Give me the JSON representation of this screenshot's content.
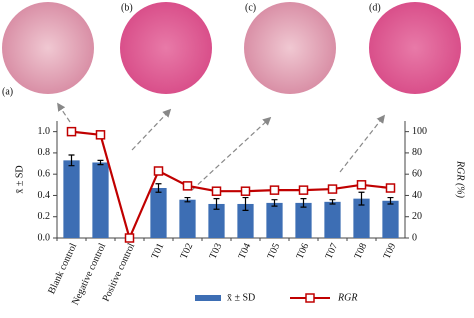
{
  "chart_data": {
    "type": "bar",
    "panel_labels": [
      "(a)",
      "(b)",
      "(c)",
      "(d)"
    ],
    "categories": [
      "Blank control",
      "Negative control",
      "Positive control",
      "T01",
      "T02",
      "T03",
      "T04",
      "T05",
      "T06",
      "T07",
      "T08",
      "T09"
    ],
    "series": [
      {
        "name": "x̄ ± SD",
        "color": "#3d6eb4",
        "values": [
          0.73,
          0.71,
          0.0,
          0.47,
          0.36,
          0.32,
          0.32,
          0.33,
          0.33,
          0.34,
          0.37,
          0.35
        ],
        "errors": [
          0.05,
          0.02,
          0.0,
          0.04,
          0.02,
          0.05,
          0.06,
          0.03,
          0.04,
          0.02,
          0.06,
          0.03
        ]
      },
      {
        "name": "RGR",
        "color": "#c00000",
        "type": "line",
        "axis": "y2",
        "values": [
          100,
          97,
          0,
          63,
          49,
          44,
          44,
          45,
          45,
          46,
          50,
          47
        ]
      }
    ],
    "y_label": "x̄ ± SD",
    "y2_label": "RGR (%)",
    "ylim": [
      0,
      1.1
    ],
    "yticks": [
      {
        "value": 0,
        "label": "0.0"
      },
      {
        "value": 0.2,
        "label": "0.2"
      },
      {
        "value": 0.4,
        "label": "0.4"
      },
      {
        "value": 0.6,
        "label": "0.6"
      },
      {
        "value": 0.8,
        "label": "0.8"
      },
      {
        "value": 1.0,
        "label": "1.0"
      }
    ],
    "y2lim": [
      0,
      110
    ],
    "y2ticks": [
      0,
      20,
      40,
      60,
      80,
      100
    ]
  }
}
